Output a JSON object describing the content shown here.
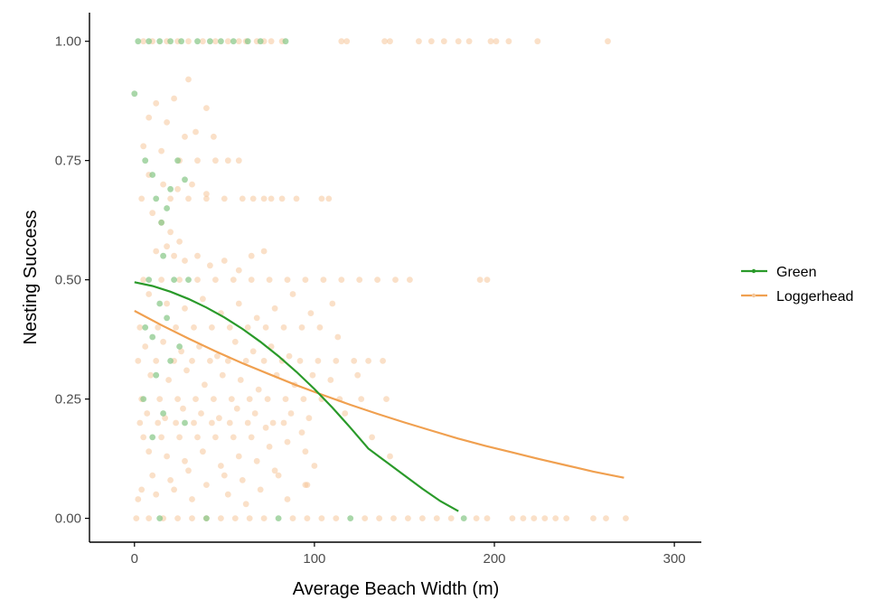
{
  "chart_data": {
    "type": "scatter",
    "xlabel": "Average Beach Width (m)",
    "ylabel": "Nesting Success",
    "xlim": [
      -25,
      315
    ],
    "ylim": [
      -0.05,
      1.06
    ],
    "x_ticks": [
      0,
      100,
      200,
      300
    ],
    "x_tick_labels": [
      "0",
      "100",
      "200",
      "300"
    ],
    "y_ticks": [
      0,
      0.25,
      0.5,
      0.75,
      1.0
    ],
    "y_tick_labels": [
      "0.00",
      "0.25",
      "0.50",
      "0.75",
      "1.00"
    ],
    "grid": false,
    "legend_position": "right",
    "series": [
      {
        "name": "Green",
        "color": "#2a9a2a",
        "point_color": "#8cc98c",
        "fit_line": {
          "x": [
            0,
            10,
            20,
            30,
            40,
            50,
            60,
            70,
            80,
            90,
            100,
            110,
            120,
            130,
            140,
            150,
            160,
            170,
            180
          ],
          "y": [
            0.495,
            0.487,
            0.475,
            0.46,
            0.442,
            0.421,
            0.397,
            0.37,
            0.34,
            0.307,
            0.271,
            0.232,
            0.19,
            0.146,
            0.118,
            0.09,
            0.062,
            0.036,
            0.015
          ]
        },
        "points": [
          [
            2,
            1.0
          ],
          [
            8,
            1.0
          ],
          [
            14,
            1.0
          ],
          [
            20,
            1.0
          ],
          [
            26,
            1.0
          ],
          [
            35,
            1.0
          ],
          [
            42,
            1.0
          ],
          [
            48,
            1.0
          ],
          [
            55,
            1.0
          ],
          [
            63,
            1.0
          ],
          [
            70,
            1.0
          ],
          [
            84,
            1.0
          ],
          [
            0,
            0.89
          ],
          [
            6,
            0.75
          ],
          [
            10,
            0.72
          ],
          [
            12,
            0.67
          ],
          [
            15,
            0.62
          ],
          [
            18,
            0.65
          ],
          [
            20,
            0.69
          ],
          [
            24,
            0.75
          ],
          [
            28,
            0.71
          ],
          [
            16,
            0.55
          ],
          [
            8,
            0.5
          ],
          [
            22,
            0.5
          ],
          [
            30,
            0.5
          ],
          [
            14,
            0.45
          ],
          [
            18,
            0.42
          ],
          [
            6,
            0.4
          ],
          [
            10,
            0.38
          ],
          [
            25,
            0.36
          ],
          [
            20,
            0.33
          ],
          [
            12,
            0.3
          ],
          [
            5,
            0.25
          ],
          [
            16,
            0.22
          ],
          [
            28,
            0.2
          ],
          [
            10,
            0.17
          ],
          [
            14,
            0.0
          ],
          [
            40,
            0.0
          ],
          [
            80,
            0.0
          ],
          [
            120,
            0.0
          ],
          [
            183,
            0.0
          ]
        ]
      },
      {
        "name": "Loggerhead",
        "color": "#f0a050",
        "point_color": "#f5c79a",
        "fit_line": {
          "x": [
            0,
            15,
            30,
            45,
            60,
            75,
            90,
            105,
            120,
            135,
            150,
            165,
            180,
            195,
            210,
            225,
            240,
            255,
            272
          ],
          "y": [
            0.435,
            0.405,
            0.377,
            0.35,
            0.325,
            0.302,
            0.279,
            0.258,
            0.238,
            0.219,
            0.201,
            0.184,
            0.167,
            0.152,
            0.138,
            0.124,
            0.111,
            0.098,
            0.085
          ]
        },
        "points": [
          [
            5,
            1.0
          ],
          [
            10,
            1.0
          ],
          [
            18,
            1.0
          ],
          [
            24,
            1.0
          ],
          [
            30,
            1.0
          ],
          [
            38,
            1.0
          ],
          [
            45,
            1.0
          ],
          [
            52,
            1.0
          ],
          [
            58,
            1.0
          ],
          [
            62,
            1.0
          ],
          [
            68,
            1.0
          ],
          [
            72,
            1.0
          ],
          [
            76,
            1.0
          ],
          [
            82,
            1.0
          ],
          [
            115,
            1.0
          ],
          [
            118,
            1.0
          ],
          [
            139,
            1.0
          ],
          [
            142,
            1.0
          ],
          [
            158,
            1.0
          ],
          [
            165,
            1.0
          ],
          [
            172,
            1.0
          ],
          [
            180,
            1.0
          ],
          [
            186,
            1.0
          ],
          [
            198,
            1.0
          ],
          [
            201,
            1.0
          ],
          [
            208,
            1.0
          ],
          [
            224,
            1.0
          ],
          [
            263,
            1.0
          ],
          [
            30,
            0.92
          ],
          [
            22,
            0.88
          ],
          [
            12,
            0.87
          ],
          [
            40,
            0.86
          ],
          [
            8,
            0.84
          ],
          [
            18,
            0.83
          ],
          [
            28,
            0.8
          ],
          [
            34,
            0.81
          ],
          [
            44,
            0.8
          ],
          [
            5,
            0.78
          ],
          [
            15,
            0.77
          ],
          [
            25,
            0.75
          ],
          [
            35,
            0.75
          ],
          [
            45,
            0.75
          ],
          [
            52,
            0.75
          ],
          [
            58,
            0.75
          ],
          [
            8,
            0.72
          ],
          [
            16,
            0.7
          ],
          [
            24,
            0.69
          ],
          [
            32,
            0.7
          ],
          [
            40,
            0.68
          ],
          [
            4,
            0.67
          ],
          [
            20,
            0.67
          ],
          [
            30,
            0.67
          ],
          [
            40,
            0.67
          ],
          [
            50,
            0.67
          ],
          [
            60,
            0.67
          ],
          [
            66,
            0.67
          ],
          [
            72,
            0.67
          ],
          [
            76,
            0.67
          ],
          [
            82,
            0.67
          ],
          [
            90,
            0.67
          ],
          [
            104,
            0.67
          ],
          [
            108,
            0.67
          ],
          [
            10,
            0.64
          ],
          [
            15,
            0.62
          ],
          [
            20,
            0.6
          ],
          [
            25,
            0.58
          ],
          [
            18,
            0.57
          ],
          [
            12,
            0.56
          ],
          [
            22,
            0.55
          ],
          [
            28,
            0.54
          ],
          [
            35,
            0.55
          ],
          [
            42,
            0.53
          ],
          [
            50,
            0.54
          ],
          [
            58,
            0.52
          ],
          [
            65,
            0.55
          ],
          [
            72,
            0.56
          ],
          [
            5,
            0.5
          ],
          [
            15,
            0.5
          ],
          [
            25,
            0.5
          ],
          [
            35,
            0.5
          ],
          [
            45,
            0.5
          ],
          [
            55,
            0.5
          ],
          [
            65,
            0.5
          ],
          [
            75,
            0.5
          ],
          [
            85,
            0.5
          ],
          [
            95,
            0.5
          ],
          [
            105,
            0.5
          ],
          [
            115,
            0.5
          ],
          [
            125,
            0.5
          ],
          [
            135,
            0.5
          ],
          [
            145,
            0.5
          ],
          [
            153,
            0.5
          ],
          [
            192,
            0.5
          ],
          [
            196,
            0.5
          ],
          [
            8,
            0.47
          ],
          [
            18,
            0.45
          ],
          [
            28,
            0.44
          ],
          [
            38,
            0.46
          ],
          [
            48,
            0.43
          ],
          [
            58,
            0.45
          ],
          [
            68,
            0.42
          ],
          [
            78,
            0.44
          ],
          [
            88,
            0.47
          ],
          [
            98,
            0.43
          ],
          [
            110,
            0.45
          ],
          [
            3,
            0.4
          ],
          [
            13,
            0.4
          ],
          [
            23,
            0.4
          ],
          [
            33,
            0.4
          ],
          [
            43,
            0.4
          ],
          [
            53,
            0.4
          ],
          [
            63,
            0.4
          ],
          [
            73,
            0.4
          ],
          [
            83,
            0.4
          ],
          [
            93,
            0.4
          ],
          [
            103,
            0.4
          ],
          [
            113,
            0.38
          ],
          [
            6,
            0.36
          ],
          [
            16,
            0.37
          ],
          [
            26,
            0.35
          ],
          [
            36,
            0.36
          ],
          [
            46,
            0.34
          ],
          [
            56,
            0.37
          ],
          [
            66,
            0.35
          ],
          [
            76,
            0.36
          ],
          [
            86,
            0.34
          ],
          [
            2,
            0.33
          ],
          [
            12,
            0.33
          ],
          [
            22,
            0.33
          ],
          [
            32,
            0.33
          ],
          [
            42,
            0.33
          ],
          [
            52,
            0.33
          ],
          [
            62,
            0.33
          ],
          [
            72,
            0.33
          ],
          [
            82,
            0.33
          ],
          [
            92,
            0.33
          ],
          [
            102,
            0.33
          ],
          [
            112,
            0.33
          ],
          [
            122,
            0.33
          ],
          [
            130,
            0.33
          ],
          [
            138,
            0.33
          ],
          [
            9,
            0.3
          ],
          [
            19,
            0.29
          ],
          [
            29,
            0.31
          ],
          [
            39,
            0.28
          ],
          [
            49,
            0.3
          ],
          [
            59,
            0.29
          ],
          [
            69,
            0.27
          ],
          [
            79,
            0.3
          ],
          [
            89,
            0.28
          ],
          [
            99,
            0.3
          ],
          [
            109,
            0.29
          ],
          [
            124,
            0.3
          ],
          [
            4,
            0.25
          ],
          [
            14,
            0.25
          ],
          [
            24,
            0.25
          ],
          [
            34,
            0.25
          ],
          [
            44,
            0.25
          ],
          [
            54,
            0.25
          ],
          [
            64,
            0.25
          ],
          [
            74,
            0.25
          ],
          [
            84,
            0.25
          ],
          [
            94,
            0.25
          ],
          [
            104,
            0.25
          ],
          [
            114,
            0.25
          ],
          [
            126,
            0.25
          ],
          [
            140,
            0.25
          ],
          [
            7,
            0.22
          ],
          [
            17,
            0.21
          ],
          [
            27,
            0.23
          ],
          [
            37,
            0.22
          ],
          [
            47,
            0.21
          ],
          [
            57,
            0.23
          ],
          [
            67,
            0.22
          ],
          [
            77,
            0.2
          ],
          [
            87,
            0.22
          ],
          [
            97,
            0.21
          ],
          [
            117,
            0.22
          ],
          [
            3,
            0.2
          ],
          [
            13,
            0.2
          ],
          [
            23,
            0.2
          ],
          [
            33,
            0.2
          ],
          [
            43,
            0.2
          ],
          [
            53,
            0.2
          ],
          [
            63,
            0.2
          ],
          [
            73,
            0.19
          ],
          [
            83,
            0.2
          ],
          [
            93,
            0.18
          ],
          [
            5,
            0.17
          ],
          [
            15,
            0.17
          ],
          [
            25,
            0.17
          ],
          [
            35,
            0.17
          ],
          [
            45,
            0.17
          ],
          [
            55,
            0.17
          ],
          [
            65,
            0.17
          ],
          [
            75,
            0.15
          ],
          [
            85,
            0.16
          ],
          [
            95,
            0.14
          ],
          [
            132,
            0.17
          ],
          [
            8,
            0.14
          ],
          [
            18,
            0.13
          ],
          [
            28,
            0.12
          ],
          [
            38,
            0.14
          ],
          [
            48,
            0.11
          ],
          [
            58,
            0.13
          ],
          [
            68,
            0.12
          ],
          [
            78,
            0.1
          ],
          [
            100,
            0.11
          ],
          [
            142,
            0.13
          ],
          [
            10,
            0.09
          ],
          [
            20,
            0.08
          ],
          [
            30,
            0.1
          ],
          [
            40,
            0.07
          ],
          [
            50,
            0.09
          ],
          [
            60,
            0.08
          ],
          [
            70,
            0.06
          ],
          [
            80,
            0.09
          ],
          [
            95,
            0.07
          ],
          [
            2,
            0.04
          ],
          [
            12,
            0.05
          ],
          [
            22,
            0.06
          ],
          [
            32,
            0.04
          ],
          [
            52,
            0.05
          ],
          [
            62,
            0.03
          ],
          [
            85,
            0.04
          ],
          [
            96,
            0.07
          ],
          [
            4,
            0.06
          ],
          [
            1,
            0.0
          ],
          [
            8,
            0.0
          ],
          [
            16,
            0.0
          ],
          [
            24,
            0.0
          ],
          [
            32,
            0.0
          ],
          [
            40,
            0.0
          ],
          [
            48,
            0.0
          ],
          [
            56,
            0.0
          ],
          [
            64,
            0.0
          ],
          [
            72,
            0.0
          ],
          [
            88,
            0.0
          ],
          [
            96,
            0.0
          ],
          [
            104,
            0.0
          ],
          [
            112,
            0.0
          ],
          [
            128,
            0.0
          ],
          [
            136,
            0.0
          ],
          [
            144,
            0.0
          ],
          [
            152,
            0.0
          ],
          [
            160,
            0.0
          ],
          [
            168,
            0.0
          ],
          [
            176,
            0.0
          ],
          [
            190,
            0.0
          ],
          [
            196,
            0.0
          ],
          [
            210,
            0.0
          ],
          [
            216,
            0.0
          ],
          [
            222,
            0.0
          ],
          [
            228,
            0.0
          ],
          [
            234,
            0.0
          ],
          [
            240,
            0.0
          ],
          [
            255,
            0.0
          ],
          [
            262,
            0.0
          ],
          [
            273,
            0.0
          ]
        ]
      }
    ]
  }
}
